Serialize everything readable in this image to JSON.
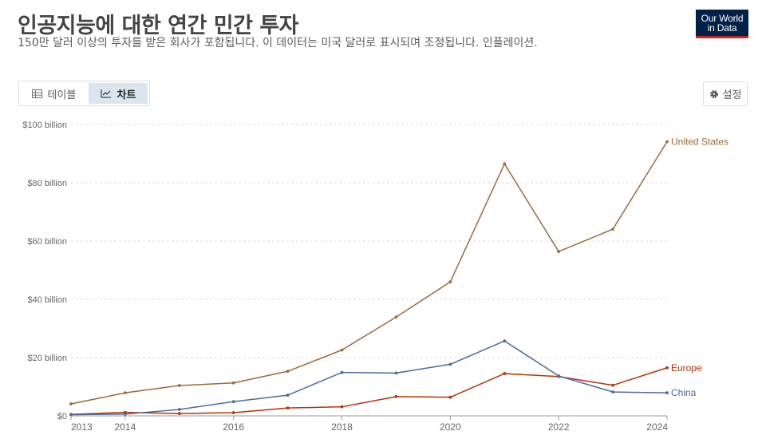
{
  "header": {
    "title": "인공지능에 대한 연간 민간 투자",
    "subtitle": "150만 달러 이상의 투자를 받은 회사가 포함됩니다. 이 데이터는 미국 달러로 표시되며 조정됩니다. 인플레이션."
  },
  "logo": {
    "line1": "Our World",
    "line2": "in Data"
  },
  "tabs": {
    "table_label": "테이블",
    "chart_label": "차트"
  },
  "settings": {
    "label": "설정"
  },
  "colors": {
    "United States": "#9a6a3a",
    "Europe": "#b13507",
    "China": "#4c6a9c",
    "grid": "#dddddd",
    "axis": "#999999"
  },
  "chart_data": {
    "type": "line",
    "title": "인공지능에 대한 연간 민간 투자",
    "x": [
      2013,
      2014,
      2015,
      2016,
      2017,
      2018,
      2019,
      2020,
      2021,
      2022,
      2023,
      2024
    ],
    "x_ticks": [
      "2013",
      "2014",
      "2016",
      "2018",
      "2020",
      "2022",
      "2024"
    ],
    "y_ticks": [
      "$0",
      "$20 billion",
      "$40 billion",
      "$60 billion",
      "$80 billion",
      "$100 billion"
    ],
    "ylim": [
      0,
      100
    ],
    "grid": true,
    "legend": "inline-right",
    "series": [
      {
        "name": "United States",
        "values": [
          4.1,
          7.9,
          10.4,
          11.3,
          15.3,
          22.6,
          33.9,
          46.0,
          86.5,
          56.4,
          64.1,
          94.1
        ]
      },
      {
        "name": "Europe",
        "values": [
          0.5,
          1.2,
          0.8,
          1.1,
          2.7,
          3.1,
          6.6,
          6.4,
          14.5,
          13.5,
          10.5,
          16.5
        ]
      },
      {
        "name": "China",
        "values": [
          0.4,
          0.6,
          2.2,
          4.9,
          7.1,
          14.9,
          14.7,
          17.7,
          25.7,
          13.7,
          8.2,
          7.9
        ]
      }
    ]
  }
}
